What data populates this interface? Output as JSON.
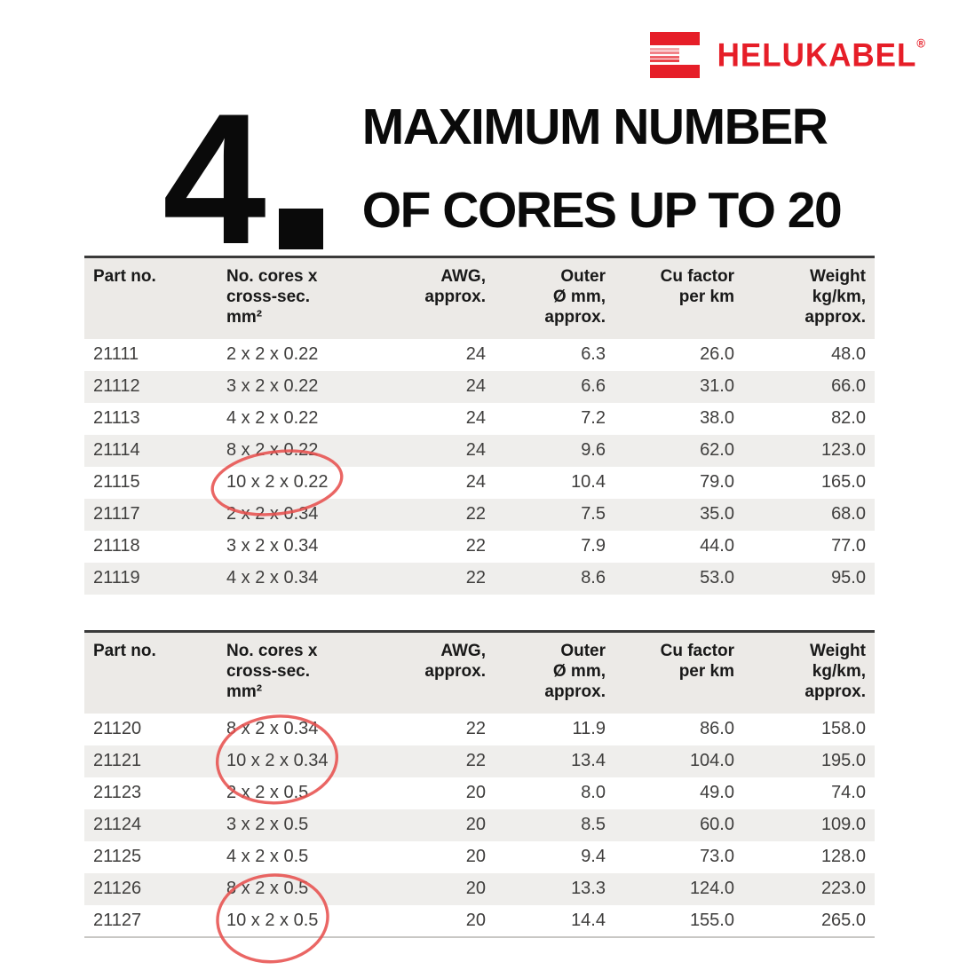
{
  "logo": {
    "brand": "HELUKABEL",
    "registered": "®",
    "icon": "helukabel-stripe-mark",
    "color": "#e61e28"
  },
  "heading": {
    "number": "4",
    "line1": "MAXIMUM NUMBER",
    "line2": "OF CORES UP TO 20"
  },
  "colors": {
    "brand_red": "#e61e28",
    "annotation_circle_red": "#e8514f",
    "table_header_bg": "#eceae7",
    "table_stripe_bg": "#efeeec"
  },
  "tables": [
    {
      "columns": [
        "Part no.",
        "No. cores x\ncross-sec.\nmm²",
        "AWG,\napprox.",
        "Outer\nØ mm,\napprox.",
        "Cu factor\nper km",
        "Weight\nkg/km,\napprox."
      ],
      "rows": [
        {
          "cells": [
            "21111",
            "2 x 2 x 0.22",
            "24",
            "6.3",
            "26.0",
            "48.0"
          ],
          "circled": false
        },
        {
          "cells": [
            "21112",
            "3 x 2 x 0.22",
            "24",
            "6.6",
            "31.0",
            "66.0"
          ],
          "circled": false
        },
        {
          "cells": [
            "21113",
            "4 x 2 x 0.22",
            "24",
            "7.2",
            "38.0",
            "82.0"
          ],
          "circled": false
        },
        {
          "cells": [
            "21114",
            "8 x 2 x 0.22",
            "24",
            "9.6",
            "62.0",
            "123.0"
          ],
          "circled": false
        },
        {
          "cells": [
            "21115",
            "10 x 2 x 0.22",
            "24",
            "10.4",
            "79.0",
            "165.0"
          ],
          "circled": true
        },
        {
          "cells": [
            "21117",
            "2 x 2 x 0.34",
            "22",
            "7.5",
            "35.0",
            "68.0"
          ],
          "circled": false
        },
        {
          "cells": [
            "21118",
            "3 x 2 x 0.34",
            "22",
            "7.9",
            "44.0",
            "77.0"
          ],
          "circled": false
        },
        {
          "cells": [
            "21119",
            "4 x 2 x 0.34",
            "22",
            "8.6",
            "53.0",
            "95.0"
          ],
          "circled": false
        }
      ]
    },
    {
      "columns": [
        "Part no.",
        "No. cores x\ncross-sec.\nmm²",
        "AWG,\napprox.",
        "Outer\nØ mm,\napprox.",
        "Cu factor\nper km",
        "Weight\nkg/km,\napprox."
      ],
      "rows": [
        {
          "cells": [
            "21120",
            "8 x 2 x 0.34",
            "22",
            "11.9",
            "86.0",
            "158.0"
          ],
          "circled": false
        },
        {
          "cells": [
            "21121",
            "10 x 2 x 0.34",
            "22",
            "13.4",
            "104.0",
            "195.0"
          ],
          "circled": true
        },
        {
          "cells": [
            "21123",
            "2 x 2 x 0.5",
            "20",
            "8.0",
            "49.0",
            "74.0"
          ],
          "circled": false
        },
        {
          "cells": [
            "21124",
            "3 x 2 x 0.5",
            "20",
            "8.5",
            "60.0",
            "109.0"
          ],
          "circled": false
        },
        {
          "cells": [
            "21125",
            "4 x 2 x 0.5",
            "20",
            "9.4",
            "73.0",
            "128.0"
          ],
          "circled": false
        },
        {
          "cells": [
            "21126",
            "8 x 2 x 0.5",
            "20",
            "13.3",
            "124.0",
            "223.0"
          ],
          "circled": false
        },
        {
          "cells": [
            "21127",
            "10 x 2 x 0.5",
            "20",
            "14.4",
            "155.0",
            "265.0"
          ],
          "circled": true
        }
      ]
    }
  ]
}
